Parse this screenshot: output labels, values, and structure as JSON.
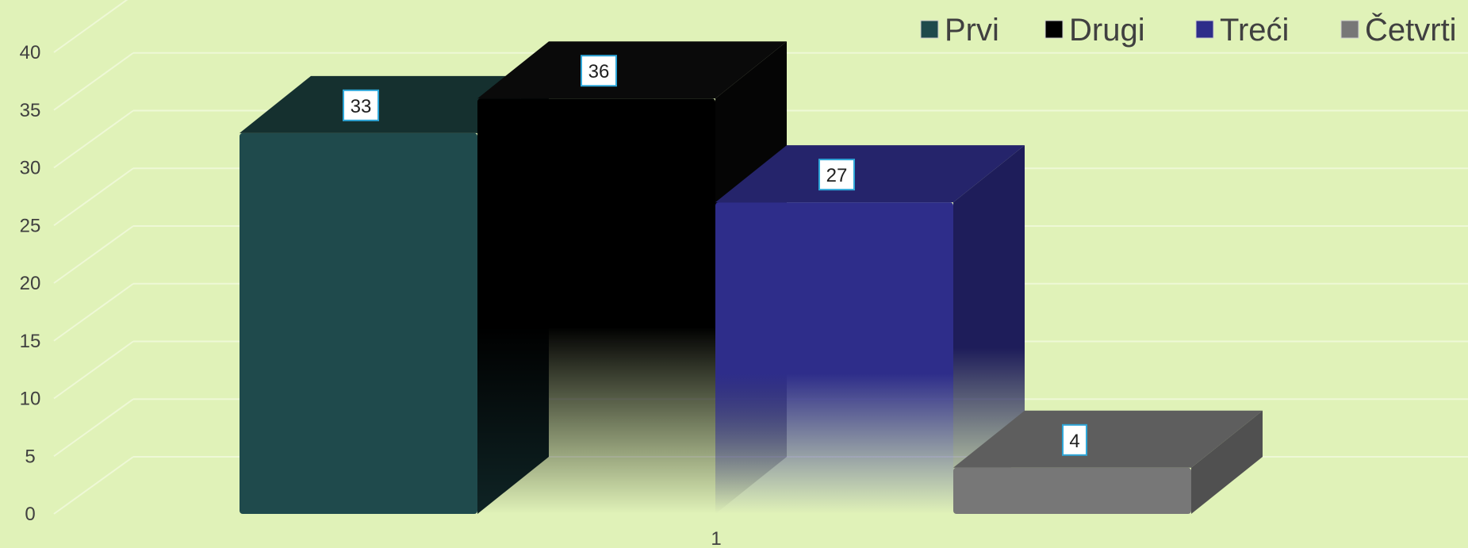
{
  "chart_data": {
    "type": "bar",
    "categories": [
      "1"
    ],
    "series": [
      {
        "name": "Prvi",
        "values": [
          33
        ],
        "color": "#1f4a4c",
        "top": "#15302f",
        "side": "#0f2425"
      },
      {
        "name": "Drugi",
        "values": [
          36
        ],
        "color": "#000000",
        "top": "#0a0a0a",
        "side": "#050505",
        "fade": true
      },
      {
        "name": "Treći",
        "values": [
          27
        ],
        "color": "#2e2d8a",
        "top": "#25246b",
        "side": "#1e1d5a",
        "fade": true
      },
      {
        "name": "Četvrti",
        "values": [
          4
        ],
        "color": "#777777",
        "top": "#5e5e5e",
        "side": "#505050"
      }
    ],
    "ylim": [
      0,
      40
    ],
    "yticks": [
      0,
      5,
      10,
      15,
      20,
      25,
      30,
      35,
      40
    ],
    "title": "",
    "xlabel": "",
    "ylabel": "",
    "grid": true,
    "legend_position": "top-right",
    "colors": {
      "background": "#e0f2b8",
      "gridline": "#eef8d6",
      "label_border": "#2ea6d8"
    }
  }
}
